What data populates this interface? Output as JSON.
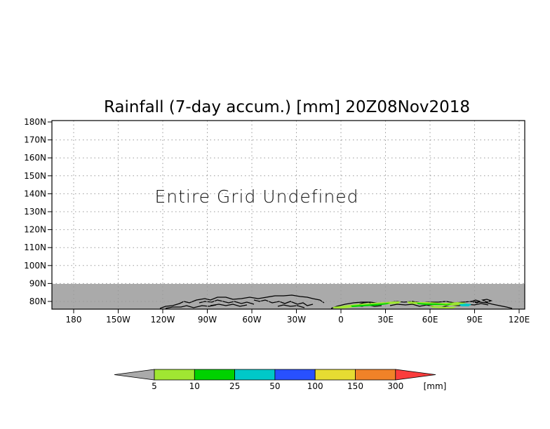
{
  "title": "Rainfall (7-day accum.) [mm] 20Z08Nov2018",
  "message": "Entire Grid Undefined",
  "map": {
    "y_ticks": [
      "180N",
      "170N",
      "160N",
      "150N",
      "140N",
      "130N",
      "120N",
      "110N",
      "100N",
      "90N",
      "80N"
    ],
    "x_ticks": [
      "180",
      "150W",
      "120W",
      "90W",
      "60W",
      "30W",
      "0",
      "30E",
      "60E",
      "90E",
      "120E"
    ],
    "undefined_fill_color": "#aaaaaa",
    "grid_style": "dotted"
  },
  "colorbar": {
    "labels": [
      "5",
      "10",
      "25",
      "50",
      "100",
      "150",
      "300"
    ],
    "unit": "[mm]",
    "colors": [
      "#aaaaaa",
      "#a0e632",
      "#00d200",
      "#00c8c8",
      "#2850ff",
      "#e6dc32",
      "#f08228",
      "#fa3c3c"
    ]
  }
}
